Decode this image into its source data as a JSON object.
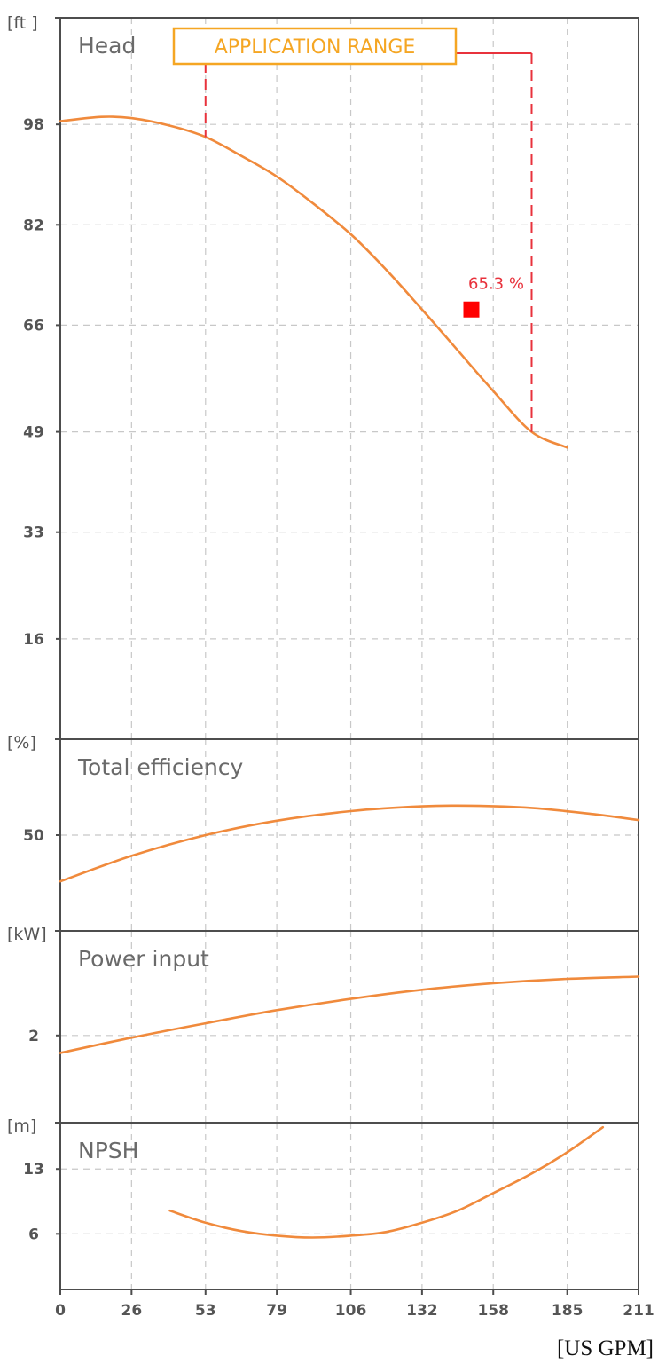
{
  "colors": {
    "curve": "#f08a3c",
    "range_box": "#f5a623",
    "range_line": "#e8323c",
    "bep_marker": "#ff0000",
    "grid": "#c8c8c8",
    "frame": "#4d4d4d"
  },
  "x_axis": {
    "ticks": [
      "0",
      "26",
      "53",
      "79",
      "106",
      "132",
      "158",
      "185",
      "211"
    ],
    "unit": "[US GPM]",
    "range": [
      0,
      211
    ]
  },
  "chart_data": [
    {
      "type": "line",
      "title": "Head",
      "unit": "[ft ]",
      "ylim": [
        0,
        115
      ],
      "yticks": [
        16,
        33,
        49,
        66,
        82,
        98
      ],
      "ytick_labels": [
        "16",
        "33",
        "49",
        "66",
        "82",
        "98"
      ],
      "grid": true,
      "series": [
        {
          "x": [
            0,
            15,
            26,
            40,
            53,
            66,
            79,
            92,
            106,
            119,
            132,
            145,
            158,
            172,
            185
          ],
          "y": [
            98.5,
            99.2,
            99,
            97.8,
            96,
            93,
            89.7,
            85.5,
            80.5,
            74.8,
            68.5,
            62,
            55.5,
            49,
            46.5
          ]
        }
      ],
      "application_range": {
        "label": "APPLICATION RANGE",
        "x_start": 53,
        "x_end": 172
      },
      "best_efficiency_point": {
        "x": 150,
        "y": 68.5,
        "label": "65.3 %"
      }
    },
    {
      "type": "line",
      "title": "Total efficiency",
      "unit": "[%]",
      "ylim": [
        20,
        80
      ],
      "yticks": [
        50
      ],
      "ytick_labels": [
        "50"
      ],
      "grid": true,
      "series": [
        {
          "x": [
            0,
            26,
            53,
            79,
            106,
            132,
            150,
            172,
            195,
            211
          ],
          "y": [
            35.5,
            43.5,
            50,
            54.5,
            57.5,
            59,
            59.2,
            58.5,
            56.5,
            54.7
          ]
        }
      ]
    },
    {
      "type": "line",
      "title": "Power input",
      "unit": "[kW]",
      "ylim": [
        0,
        4.4
      ],
      "yticks": [
        2
      ],
      "ytick_labels": [
        "2"
      ],
      "grid": true,
      "series": [
        {
          "x": [
            0,
            26,
            53,
            79,
            106,
            132,
            158,
            185,
            211
          ],
          "y": [
            1.6,
            1.95,
            2.28,
            2.58,
            2.84,
            3.05,
            3.2,
            3.3,
            3.35
          ]
        }
      ]
    },
    {
      "type": "line",
      "title": "NPSH",
      "unit": "[m]",
      "ylim": [
        0,
        18
      ],
      "yticks": [
        6,
        13
      ],
      "ytick_labels": [
        "6",
        "13"
      ],
      "grid": true,
      "series": [
        {
          "x": [
            40,
            53,
            66,
            79,
            92,
            106,
            119,
            132,
            145,
            158,
            172,
            185,
            198
          ],
          "y": [
            8.5,
            7.2,
            6.3,
            5.8,
            5.6,
            5.8,
            6.2,
            7.2,
            8.5,
            10.4,
            12.5,
            14.8,
            17.5
          ]
        }
      ]
    }
  ]
}
